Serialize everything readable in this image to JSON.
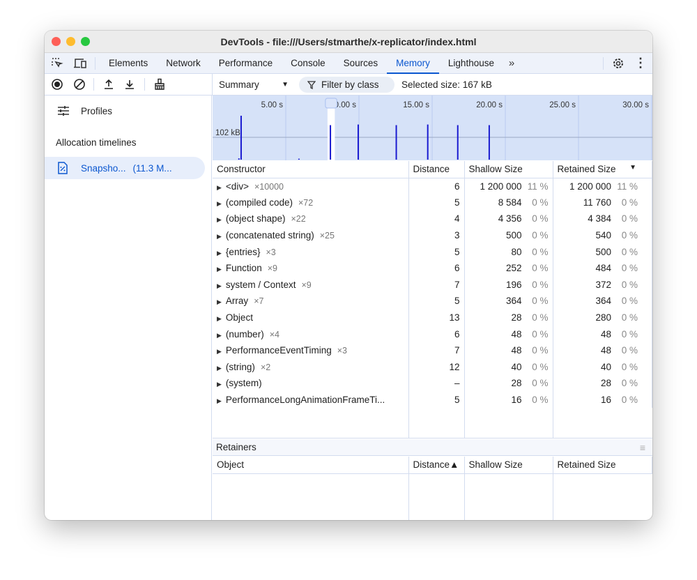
{
  "window": {
    "title": "DevTools - file:///Users/stmarthe/x-replicator/index.html"
  },
  "tabs": [
    {
      "label": "Elements"
    },
    {
      "label": "Network"
    },
    {
      "label": "Performance"
    },
    {
      "label": "Console"
    },
    {
      "label": "Sources"
    },
    {
      "label": "Memory",
      "active": true
    },
    {
      "label": "Lighthouse"
    }
  ],
  "toolbar": {
    "view_select": "Summary",
    "filter_label": "Filter by class",
    "selected_size": "Selected size: 167 kB"
  },
  "sidebar": {
    "profiles_label": "Profiles",
    "section": "Allocation timelines",
    "snapshot_name": "Snapsho...",
    "snapshot_size": "(11.3 M..."
  },
  "timeline": {
    "ticks": [
      "5.00 s",
      "10.00 s",
      "15.00 s",
      "20.00 s",
      "25.00 s",
      "30.00 s"
    ],
    "y_label": "102 kB",
    "selection_s": [
      7.85,
      8.35
    ],
    "samples": [
      {
        "t": 1.95,
        "kb": 140
      },
      {
        "t": 1.8,
        "kb": 4
      },
      {
        "t": 5.9,
        "kb": 3
      },
      {
        "t": 8.05,
        "kb": 110
      },
      {
        "t": 9.95,
        "kb": 112
      },
      {
        "t": 12.55,
        "kb": 110
      },
      {
        "t": 14.7,
        "kb": 112
      },
      {
        "t": 16.75,
        "kb": 110
      },
      {
        "t": 18.9,
        "kb": 110
      }
    ]
  },
  "summary": {
    "columns": [
      "Constructor",
      "Distance",
      "Shallow Size",
      "Retained Size"
    ],
    "rows": [
      {
        "name": "<div>",
        "count": "×10000",
        "distance": "6",
        "shallow": "1 200 000",
        "shallow_pct": "11 %",
        "retained": "1 200 000",
        "retained_pct": "11 %"
      },
      {
        "name": "(compiled code)",
        "count": "×72",
        "distance": "5",
        "shallow": "8 584",
        "shallow_pct": "0 %",
        "retained": "11 760",
        "retained_pct": "0 %"
      },
      {
        "name": "(object shape)",
        "count": "×22",
        "distance": "4",
        "shallow": "4 356",
        "shallow_pct": "0 %",
        "retained": "4 384",
        "retained_pct": "0 %"
      },
      {
        "name": "(concatenated string)",
        "count": "×25",
        "distance": "3",
        "shallow": "500",
        "shallow_pct": "0 %",
        "retained": "540",
        "retained_pct": "0 %"
      },
      {
        "name": "{entries}",
        "count": "×3",
        "distance": "5",
        "shallow": "80",
        "shallow_pct": "0 %",
        "retained": "500",
        "retained_pct": "0 %"
      },
      {
        "name": "Function",
        "count": "×9",
        "distance": "6",
        "shallow": "252",
        "shallow_pct": "0 %",
        "retained": "484",
        "retained_pct": "0 %"
      },
      {
        "name": "system / Context",
        "count": "×9",
        "distance": "7",
        "shallow": "196",
        "shallow_pct": "0 %",
        "retained": "372",
        "retained_pct": "0 %"
      },
      {
        "name": "Array",
        "count": "×7",
        "distance": "5",
        "shallow": "364",
        "shallow_pct": "0 %",
        "retained": "364",
        "retained_pct": "0 %"
      },
      {
        "name": "Object",
        "count": "",
        "distance": "13",
        "shallow": "28",
        "shallow_pct": "0 %",
        "retained": "280",
        "retained_pct": "0 %"
      },
      {
        "name": "(number)",
        "count": "×4",
        "distance": "6",
        "shallow": "48",
        "shallow_pct": "0 %",
        "retained": "48",
        "retained_pct": "0 %"
      },
      {
        "name": "PerformanceEventTiming",
        "count": "×3",
        "distance": "7",
        "shallow": "48",
        "shallow_pct": "0 %",
        "retained": "48",
        "retained_pct": "0 %"
      },
      {
        "name": "(string)",
        "count": "×2",
        "distance": "12",
        "shallow": "40",
        "shallow_pct": "0 %",
        "retained": "40",
        "retained_pct": "0 %"
      },
      {
        "name": "(system)",
        "count": "",
        "distance": "–",
        "shallow": "28",
        "shallow_pct": "0 %",
        "retained": "28",
        "retained_pct": "0 %"
      },
      {
        "name": "PerformanceLongAnimationFrameTi...",
        "count": "",
        "distance": "5",
        "shallow": "16",
        "shallow_pct": "0 %",
        "retained": "16",
        "retained_pct": "0 %"
      }
    ]
  },
  "retainers": {
    "title": "Retainers",
    "columns": [
      "Object",
      "Distance▲",
      "Shallow Size",
      "Retained Size"
    ]
  },
  "colors": {
    "accent": "#0b57d0",
    "bar": "#1a1ad0",
    "overview_bg": "#d6e2f8"
  }
}
